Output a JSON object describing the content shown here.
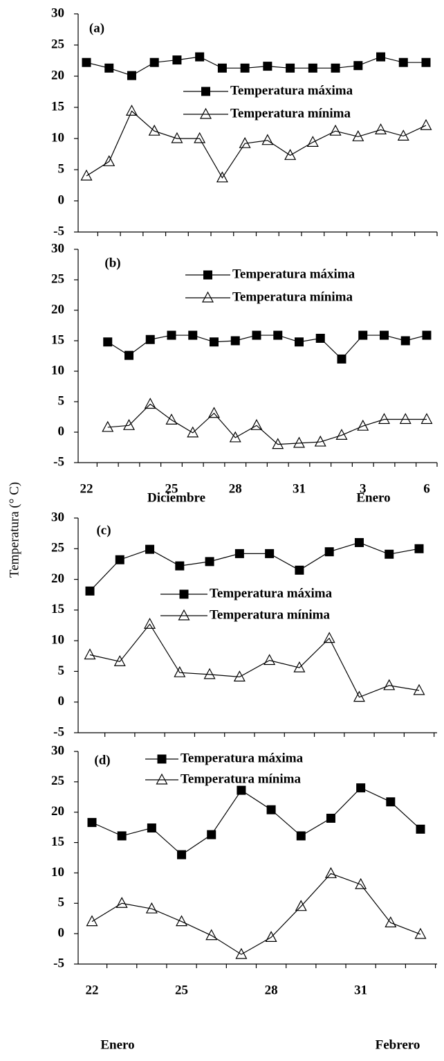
{
  "ylabel": "Temperatura (° C)",
  "chart_data": [
    {
      "type": "line",
      "label": "(a)",
      "categories": [
        null,
        null,
        null,
        null,
        null,
        null,
        null,
        null,
        null,
        null,
        null,
        null,
        null,
        null,
        null,
        null
      ],
      "series": [
        {
          "name": "Temperatura máxima",
          "color": "#000000",
          "marker": "square",
          "values": [
            22.2,
            21.3,
            20.1,
            22.2,
            22.6,
            23.1,
            21.3,
            21.3,
            21.6,
            21.3,
            21.3,
            21.3,
            21.7,
            23.1,
            22.2,
            22.2
          ]
        },
        {
          "name": "Temperatura mínima",
          "color": "#000000",
          "marker": "triangle",
          "values": [
            4.0,
            6.3,
            14.4,
            11.2,
            10.0,
            10.0,
            3.7,
            9.2,
            9.7,
            7.3,
            9.4,
            11.2,
            10.3,
            11.4,
            10.4,
            12.1
          ]
        }
      ],
      "ylim": [
        -5,
        30
      ],
      "yticks": [
        -5,
        0,
        5,
        10,
        15,
        20,
        25,
        30
      ]
    },
    {
      "type": "line",
      "label": "(b)",
      "categories": [
        "22",
        null,
        null,
        null,
        "25",
        null,
        null,
        "28",
        null,
        null,
        "31",
        null,
        null,
        "3",
        null,
        null,
        "6"
      ],
      "x_group_labels": [
        "Diciembre",
        "Enero"
      ],
      "series": [
        {
          "name": "Temperatura máxima",
          "color": "#000000",
          "marker": "square",
          "values": [
            null,
            14.8,
            12.6,
            15.2,
            15.9,
            15.9,
            14.8,
            15.0,
            15.9,
            15.9,
            14.8,
            15.4,
            12.0,
            15.9,
            15.9,
            15.0,
            15.9
          ]
        },
        {
          "name": "Temperatura mínima",
          "color": "#000000",
          "marker": "triangle",
          "values": [
            null,
            0.8,
            1.1,
            4.6,
            2.0,
            -0.1,
            3.1,
            -0.9,
            1.1,
            -2.0,
            -1.8,
            -1.6,
            -0.5,
            1.0,
            2.1,
            2.1,
            2.1
          ]
        }
      ],
      "ylim": [
        -5,
        30
      ],
      "yticks": [
        -5,
        0,
        5,
        10,
        15,
        20,
        25,
        30
      ]
    },
    {
      "type": "line",
      "label": "(c)",
      "categories": [
        null,
        null,
        null,
        null,
        null,
        null,
        null,
        null,
        null,
        null,
        null,
        null
      ],
      "series": [
        {
          "name": "Temperatura máxima",
          "color": "#000000",
          "marker": "square",
          "values": [
            18.1,
            23.2,
            24.9,
            22.2,
            22.9,
            24.2,
            24.2,
            21.5,
            24.5,
            26.0,
            24.1,
            25.0
          ]
        },
        {
          "name": "Temperatura mínima",
          "color": "#000000",
          "marker": "triangle",
          "values": [
            7.7,
            6.6,
            12.7,
            4.8,
            4.5,
            4.1,
            6.8,
            5.6,
            10.4,
            0.8,
            2.7,
            1.9
          ]
        }
      ],
      "ylim": [
        -5,
        30
      ],
      "yticks": [
        -5,
        0,
        5,
        10,
        15,
        20,
        25,
        30
      ]
    },
    {
      "type": "line",
      "label": "(d)",
      "categories": [
        "22",
        null,
        null,
        "25",
        null,
        null,
        "28",
        null,
        null,
        "31",
        null,
        null
      ],
      "x_group_labels": [
        "Enero",
        "Febrero"
      ],
      "series": [
        {
          "name": "Temperatura máxima",
          "color": "#000000",
          "marker": "square",
          "values": [
            18.3,
            16.1,
            17.4,
            13.0,
            16.3,
            23.6,
            20.4,
            16.1,
            19.0,
            24.0,
            21.7,
            17.2
          ]
        },
        {
          "name": "Temperatura mínima",
          "color": "#000000",
          "marker": "triangle",
          "values": [
            2.0,
            5.0,
            4.1,
            2.0,
            -0.3,
            -3.4,
            -0.6,
            4.5,
            9.9,
            8.1,
            1.8,
            -0.1
          ]
        }
      ],
      "ylim": [
        -5,
        30
      ],
      "yticks": [
        -5,
        0,
        5,
        10,
        15,
        20,
        25,
        30
      ]
    }
  ]
}
